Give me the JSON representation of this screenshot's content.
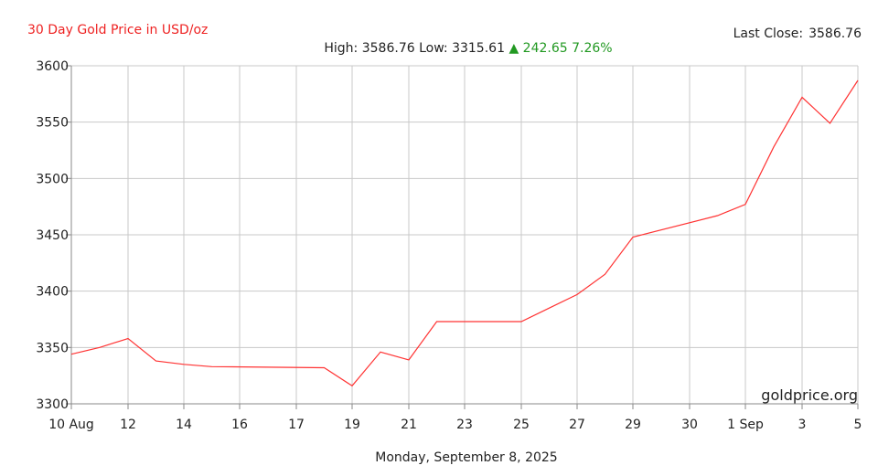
{
  "header": {
    "title": "30 Day Gold Price in USD/oz",
    "last_close_label": "Last Close:",
    "last_close_value": "3586.76"
  },
  "stats": {
    "high_label": "High:",
    "high": "3586.76",
    "low_label": "Low:",
    "low": "3315.61",
    "change_symbol": "▲",
    "change": "242.65",
    "change_pct": "7.26%"
  },
  "footer": {
    "date": "Monday, September 8, 2025"
  },
  "watermark": "goldprice.org",
  "colors": {
    "line": "#ff3333",
    "title": "#ee2222",
    "up": "#229922",
    "grid": "#c8c8c8"
  },
  "chart_data": {
    "type": "line",
    "title": "30 Day Gold Price in USD/oz",
    "xlabel": "",
    "ylabel": "",
    "ylim": [
      3300,
      3600
    ],
    "yticks": [
      3300,
      3350,
      3400,
      3450,
      3500,
      3550,
      3600
    ],
    "x_tick_labels": [
      "10 Aug",
      "12",
      "14",
      "16",
      "17",
      "19",
      "21",
      "23",
      "25",
      "27",
      "29",
      "30",
      "1 Sep",
      "3",
      "5"
    ],
    "grid": true,
    "series": [
      {
        "values": [
          [
            "2025-08-10",
            3344
          ],
          [
            "2025-08-11",
            3350
          ],
          [
            "2025-08-12",
            3358
          ],
          [
            "2025-08-13",
            3338
          ],
          [
            "2025-08-14",
            3335
          ],
          [
            "2025-08-15",
            3333
          ],
          [
            "2025-08-18",
            3332
          ],
          [
            "2025-08-19",
            3316
          ],
          [
            "2025-08-20",
            3346
          ],
          [
            "2025-08-21",
            3339
          ],
          [
            "2025-08-22",
            3373
          ],
          [
            "2025-08-25",
            3373
          ],
          [
            "2025-08-26",
            3385
          ],
          [
            "2025-08-27",
            3397
          ],
          [
            "2025-08-28",
            3415
          ],
          [
            "2025-08-29",
            3448
          ],
          [
            "2025-08-31",
            3467
          ],
          [
            "2025-09-01",
            3477
          ],
          [
            "2025-09-02",
            3528
          ],
          [
            "2025-09-03",
            3572
          ],
          [
            "2025-09-04",
            3549
          ],
          [
            "2025-09-05",
            3587
          ]
        ]
      }
    ]
  }
}
